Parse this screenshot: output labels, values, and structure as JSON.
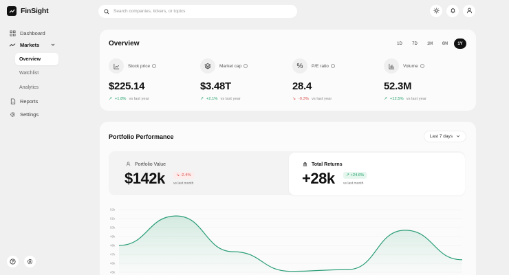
{
  "app": {
    "name": "FinSight",
    "logo_icon": "trending-up-icon"
  },
  "search": {
    "placeholder": "Search companies, tickers, or topics",
    "value": ""
  },
  "topbar": {
    "icons": [
      "sun-icon",
      "bell-icon",
      "user-icon"
    ]
  },
  "sidebar": {
    "items": [
      {
        "label": "Dashboard",
        "icon": "grid-icon"
      },
      {
        "label": "Markets",
        "icon": "trending-up-icon",
        "expanded": true,
        "children": [
          {
            "label": "Overview",
            "active": true
          },
          {
            "label": "Watchlist"
          },
          {
            "label": "Analytics"
          }
        ]
      },
      {
        "label": "Reports",
        "icon": "file-icon"
      },
      {
        "label": "Settings",
        "icon": "gear-icon"
      }
    ],
    "bottom_icons": [
      "help-icon",
      "settings-icon"
    ]
  },
  "overview": {
    "title": "Overview",
    "ranges": [
      "1D",
      "7D",
      "1M",
      "6M",
      "1Y"
    ],
    "active_range": "1Y",
    "metrics": [
      {
        "label": "Stock price",
        "icon": "line-chart-icon",
        "value": "$225.14",
        "change": "+1.8%",
        "direction": "up",
        "suffix": "vs last year"
      },
      {
        "label": "Market cap",
        "icon": "layers-icon",
        "value": "$3.48T",
        "change": "+2.1%",
        "direction": "up",
        "suffix": "vs last year"
      },
      {
        "label": "P/E ratio",
        "icon": "percent-icon",
        "value": "28.4",
        "change": "-0.3%",
        "direction": "down",
        "suffix": "vs last year"
      },
      {
        "label": "Volume",
        "icon": "bar-chart-icon",
        "value": "52.3M",
        "change": "+12.5%",
        "direction": "up",
        "suffix": "vs last year"
      }
    ]
  },
  "portfolio": {
    "title": "Portfolio Performance",
    "period": "Last 7 days",
    "stats": [
      {
        "label": "Portfolio Value",
        "icon": "user-icon",
        "value": "$142k",
        "change": "-2.4%",
        "direction": "down",
        "suffix": "vs last month"
      },
      {
        "label": "Total Returns",
        "icon": "bank-icon",
        "value": "+28k",
        "change": "+24.6%",
        "direction": "up",
        "suffix": "vs last month"
      }
    ]
  },
  "chart_data": {
    "type": "area",
    "title": "Portfolio Performance",
    "xlabel": "",
    "ylabel": "",
    "y_ticks": [
      "52k",
      "51k",
      "50k",
      "49k",
      "48k",
      "47k",
      "46k",
      "45k"
    ],
    "ylim": [
      45000,
      52000
    ],
    "x": [
      0,
      1,
      2,
      3,
      4,
      5,
      6
    ],
    "values": [
      48000,
      51300,
      47300,
      45100,
      45300,
      49700,
      46400
    ],
    "color": "#22a06b",
    "grid": true
  }
}
